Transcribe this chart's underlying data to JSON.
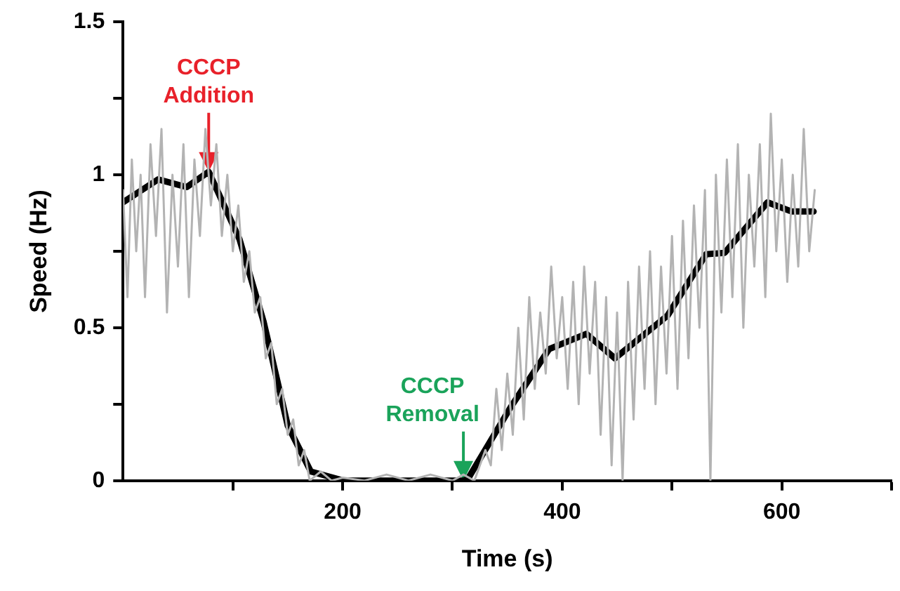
{
  "chart_data": {
    "type": "line",
    "xlabel": "Time (s)",
    "ylabel": "Speed (Hz)",
    "xlim": [
      0,
      700
    ],
    "ylim": [
      0,
      1.5
    ],
    "xticks": [
      {
        "value": 100,
        "label": null
      },
      200,
      {
        "value": 300,
        "label": null
      },
      400,
      {
        "value": 500,
        "label": null
      },
      600,
      {
        "value": 700,
        "label": null
      }
    ],
    "yticks": [
      0,
      {
        "value": 0.25,
        "label": null
      },
      0.5,
      {
        "value": 0.75,
        "label": null
      },
      1,
      {
        "value": 1.25,
        "label": null
      },
      1.5
    ],
    "grid": false,
    "legend": false,
    "marker": "none",
    "line_style": "solid",
    "annotations": [
      {
        "text": "CCCP Addition",
        "x": 78,
        "y": 1.01
      },
      {
        "text": "CCCP Removal",
        "x": 310,
        "y": 0
      }
    ],
    "series": [
      {
        "color": "#b3b3b3",
        "x": [
          0,
          4,
          8,
          12,
          16,
          20,
          25,
          30,
          35,
          40,
          45,
          50,
          55,
          60,
          65,
          70,
          75,
          80,
          85,
          90,
          95,
          100,
          105,
          110,
          115,
          120,
          125,
          130,
          135,
          140,
          145,
          150,
          155,
          160,
          165,
          170,
          180,
          190,
          200,
          220,
          240,
          260,
          280,
          300,
          310,
          320,
          330,
          335,
          340,
          345,
          350,
          355,
          360,
          365,
          370,
          375,
          380,
          385,
          390,
          395,
          400,
          405,
          410,
          415,
          420,
          425,
          430,
          435,
          440,
          445,
          450,
          455,
          460,
          465,
          470,
          475,
          480,
          485,
          490,
          495,
          500,
          505,
          510,
          515,
          520,
          525,
          530,
          535,
          540,
          545,
          550,
          555,
          560,
          565,
          570,
          575,
          580,
          585,
          590,
          595,
          600,
          605,
          610,
          615,
          620,
          625,
          630
        ],
        "values": [
          0.95,
          0.6,
          1.05,
          0.75,
          1.0,
          0.6,
          1.1,
          0.8,
          1.15,
          0.55,
          1.0,
          0.7,
          1.1,
          0.6,
          1.05,
          0.8,
          1.15,
          0.9,
          1.1,
          0.8,
          1.0,
          0.75,
          0.9,
          0.65,
          0.75,
          0.55,
          0.6,
          0.4,
          0.45,
          0.25,
          0.3,
          0.15,
          0.2,
          0.05,
          0.1,
          0.0,
          0.03,
          0.0,
          0.01,
          0.0,
          0.02,
          0.0,
          0.02,
          0.0,
          0.02,
          0.0,
          0.1,
          0.05,
          0.3,
          0.1,
          0.35,
          0.15,
          0.5,
          0.2,
          0.6,
          0.3,
          0.55,
          0.35,
          0.7,
          0.4,
          0.6,
          0.3,
          0.65,
          0.25,
          0.7,
          0.35,
          0.65,
          0.15,
          0.6,
          0.05,
          0.55,
          0.0,
          0.65,
          0.2,
          0.7,
          0.3,
          0.75,
          0.25,
          0.7,
          0.35,
          0.8,
          0.3,
          0.85,
          0.4,
          0.9,
          0.5,
          0.95,
          0.0,
          1.0,
          0.55,
          1.05,
          0.6,
          1.1,
          0.5,
          1.0,
          0.7,
          1.1,
          0.6,
          1.2,
          0.75,
          1.05,
          0.65,
          1.0,
          0.7,
          1.15,
          0.75,
          0.95
        ]
      },
      {
        "color": "#000000",
        "x": [
          0,
          32,
          58,
          78,
          106,
          128,
          150,
          171,
          201,
          310,
          314,
          353,
          388,
          422,
          448,
          496,
          531,
          548,
          587,
          609,
          629
        ],
        "values": [
          0.91,
          0.985,
          0.96,
          1.01,
          0.79,
          0.52,
          0.18,
          0.03,
          0,
          0,
          0.005,
          0.24,
          0.43,
          0.48,
          0.4,
          0.54,
          0.74,
          0.745,
          0.91,
          0.88,
          0.88
        ]
      }
    ]
  }
}
